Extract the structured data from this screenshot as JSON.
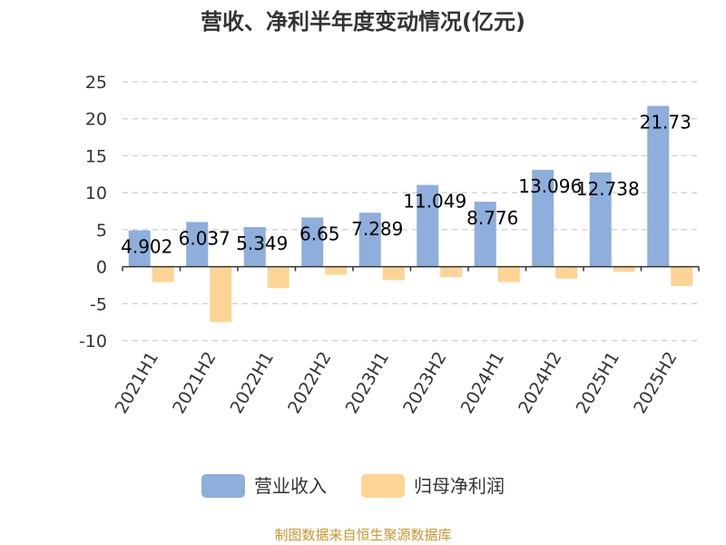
{
  "chart_data": {
    "type": "bar",
    "title": "营收、净利半年度变动情况(亿元)",
    "categories": [
      "2021H1",
      "2021H2",
      "2022H1",
      "2022H2",
      "2023H1",
      "2023H2",
      "2024H1",
      "2024H2",
      "2025H1",
      "2025H2"
    ],
    "series": [
      {
        "name": "营业收入",
        "values": [
          4.902,
          6.037,
          5.349,
          6.65,
          7.289,
          11.049,
          8.776,
          13.096,
          12.738,
          21.73
        ],
        "color": "#8eaedb",
        "show_labels": true
      },
      {
        "name": "归母净利润",
        "values": [
          -2.1,
          -7.5,
          -2.9,
          -1.1,
          -1.8,
          -1.4,
          -2.1,
          -1.6,
          -0.7,
          -2.6
        ],
        "color": "#fdd494",
        "show_labels": false
      }
    ],
    "ylim": [
      -10,
      25
    ],
    "yticks": [
      -10,
      -5,
      0,
      5,
      10,
      15,
      20,
      25
    ],
    "grid": true,
    "legend": "bottom",
    "xlabel": "",
    "ylabel": ""
  },
  "source": "制图数据来自恒生聚源数据库"
}
